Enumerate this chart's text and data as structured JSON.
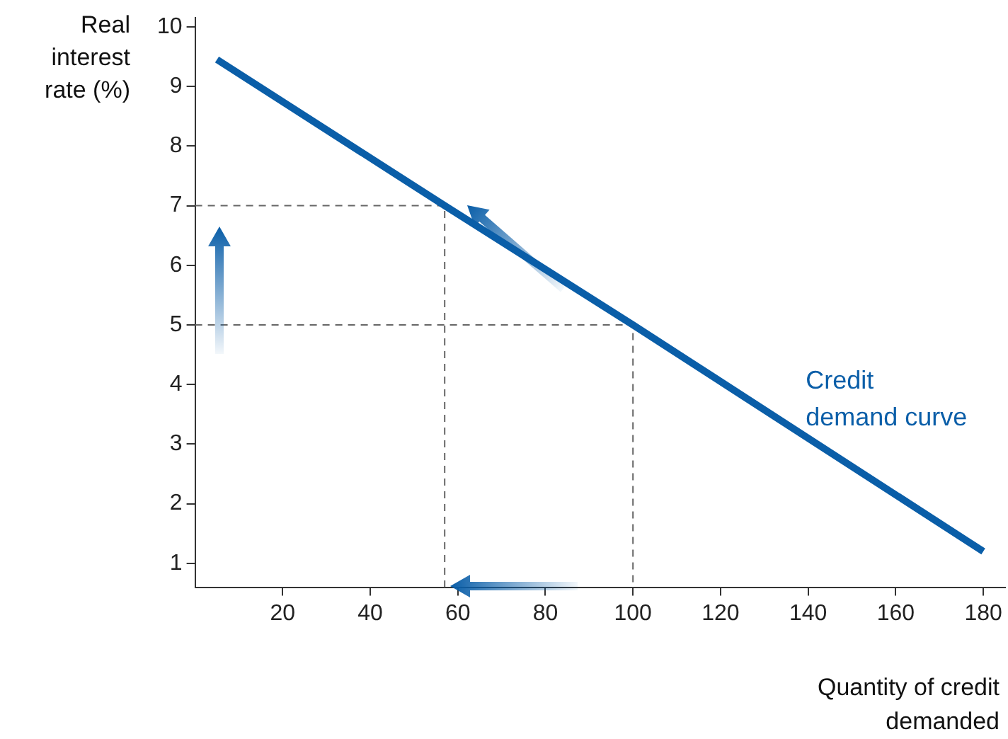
{
  "chart_data": {
    "type": "line",
    "xlabel": "Quantity of credit demanded",
    "ylabel": "Real interest rate (%)",
    "xlim": [
      0,
      185
    ],
    "xticks": [
      20,
      40,
      60,
      80,
      100,
      120,
      140,
      160,
      180
    ],
    "ylim": [
      0.6,
      10.15
    ],
    "yticks": [
      1,
      2,
      3,
      4,
      5,
      6,
      7,
      8,
      9,
      10
    ],
    "grid": false,
    "legend": false,
    "marker": "none",
    "series": [
      {
        "name": "Credit demand curve",
        "color": "#0a5ea8",
        "x": [
          5,
          57,
          100,
          180
        ],
        "values": [
          9.45,
          7,
          5,
          1.2
        ]
      },
      {
        "color": "#666666",
        "line_style": "dashed",
        "x": [
          0,
          57,
          57
        ],
        "values": [
          7,
          7,
          0.6
        ]
      },
      {
        "color": "#666666",
        "line_style": "dashed",
        "x": [
          0,
          100,
          100
        ],
        "values": [
          5,
          5,
          0.6
        ]
      }
    ]
  }
}
